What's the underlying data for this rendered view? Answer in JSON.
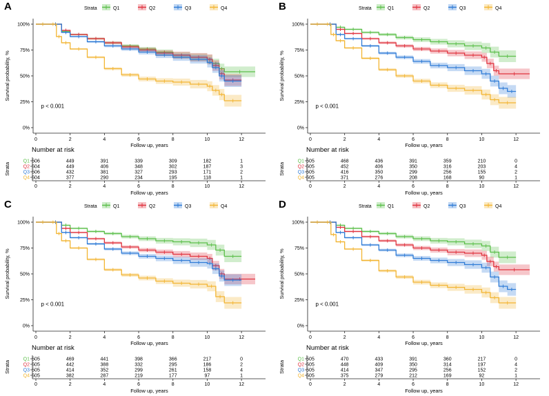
{
  "colors": {
    "Q1": "#5bbf4a",
    "Q2": "#e0333f",
    "Q3": "#2e7bd6",
    "Q4": "#f2b532"
  },
  "chart_data": [
    {
      "panel": "A",
      "type": "line",
      "subtype": "kaplan-meier",
      "legend_title": "Strata",
      "legend": [
        "Q1",
        "Q2",
        "Q3",
        "Q4"
      ],
      "legend_position": "top",
      "xlabel": "Follow up, years",
      "ylabel": "Survival probability, %",
      "xlim": [
        0,
        12.8
      ],
      "ylim": [
        0,
        1
      ],
      "x_ticks": [
        "0",
        "2",
        "4",
        "6",
        "8",
        "10",
        "12"
      ],
      "y_ticks": [
        "0%",
        "25%",
        "50%",
        "75%",
        "100%"
      ],
      "pvalue": "p < 0.001",
      "series": [
        {
          "name": "Q1",
          "x": [
            0,
            0.8,
            1.5,
            2,
            3,
            4,
            5,
            6,
            7,
            8,
            9,
            10,
            10.3,
            10.7,
            11,
            12.8
          ],
          "y": [
            1,
            1,
            0.93,
            0.9,
            0.86,
            0.82,
            0.79,
            0.76,
            0.73,
            0.7,
            0.68,
            0.66,
            0.62,
            0.57,
            0.54,
            0.54
          ]
        },
        {
          "name": "Q2",
          "x": [
            0,
            0.8,
            1.5,
            2,
            3,
            4,
            5,
            6,
            7,
            8,
            9,
            10,
            10.3,
            10.7,
            11,
            12
          ],
          "y": [
            1,
            1,
            0.94,
            0.9,
            0.86,
            0.82,
            0.78,
            0.75,
            0.72,
            0.7,
            0.68,
            0.66,
            0.6,
            0.52,
            0.46,
            0.46
          ]
        },
        {
          "name": "Q3",
          "x": [
            0,
            0.8,
            1.5,
            2,
            3,
            4,
            5,
            6,
            7,
            8,
            9,
            10,
            10.3,
            10.7,
            11,
            12
          ],
          "y": [
            1,
            1,
            0.92,
            0.88,
            0.83,
            0.79,
            0.76,
            0.73,
            0.7,
            0.68,
            0.66,
            0.63,
            0.58,
            0.5,
            0.45,
            0.45
          ]
        },
        {
          "name": "Q4",
          "x": [
            0,
            0.8,
            1.2,
            1.5,
            2,
            3,
            4,
            5,
            6,
            7,
            8,
            9,
            10,
            10.3,
            10.7,
            11,
            12
          ],
          "y": [
            1,
            1,
            0.88,
            0.82,
            0.76,
            0.68,
            0.57,
            0.51,
            0.47,
            0.45,
            0.44,
            0.42,
            0.4,
            0.36,
            0.32,
            0.26,
            0.26
          ]
        }
      ],
      "risk_table": {
        "title": "Number at risk",
        "ylabel": "Strata",
        "xlabel": "Follow up, years",
        "times": [
          "0",
          "2",
          "4",
          "6",
          "8",
          "10",
          "12"
        ],
        "rows": [
          {
            "name": "Q1",
            "values": [
              "506",
              "449",
              "391",
              "339",
              "309",
              "182",
              "1"
            ]
          },
          {
            "name": "Q2",
            "values": [
              "504",
              "449",
              "406",
              "348",
              "302",
              "187",
              "3"
            ]
          },
          {
            "name": "Q3",
            "values": [
              "506",
              "432",
              "381",
              "327",
              "293",
              "171",
              "2"
            ]
          },
          {
            "name": "Q4",
            "values": [
              "504",
              "377",
              "290",
              "234",
              "195",
              "118",
              "1"
            ]
          }
        ]
      }
    },
    {
      "panel": "B",
      "type": "line",
      "subtype": "kaplan-meier",
      "legend_title": "Strata",
      "legend": [
        "Q1",
        "Q2",
        "Q3",
        "Q4"
      ],
      "legend_position": "top",
      "xlabel": "Follow up, years",
      "ylabel": "Survival probability, %",
      "xlim": [
        0,
        12.8
      ],
      "ylim": [
        0,
        1
      ],
      "x_ticks": [
        "0",
        "2",
        "4",
        "6",
        "8",
        "10",
        "12"
      ],
      "y_ticks": [
        "0%",
        "25%",
        "50%",
        "75%",
        "100%"
      ],
      "pvalue": "p < 0.001",
      "series": [
        {
          "name": "Q1",
          "x": [
            0,
            0.8,
            1.5,
            2,
            3,
            4,
            5,
            6,
            7,
            8,
            9,
            10,
            10.5,
            11,
            12
          ],
          "y": [
            1,
            1,
            0.97,
            0.95,
            0.92,
            0.9,
            0.87,
            0.85,
            0.83,
            0.81,
            0.79,
            0.77,
            0.73,
            0.69,
            0.69
          ]
        },
        {
          "name": "Q2",
          "x": [
            0,
            0.8,
            1.5,
            2,
            3,
            4,
            5,
            6,
            7,
            8,
            9,
            10,
            10.3,
            10.7,
            11,
            12.8
          ],
          "y": [
            1,
            1,
            0.95,
            0.91,
            0.86,
            0.82,
            0.79,
            0.76,
            0.74,
            0.72,
            0.7,
            0.68,
            0.62,
            0.55,
            0.52,
            0.52
          ]
        },
        {
          "name": "Q3",
          "x": [
            0,
            0.8,
            1.5,
            2,
            3,
            4,
            5,
            6,
            7,
            8,
            9,
            10,
            10.5,
            11,
            11.5,
            12
          ],
          "y": [
            1,
            1,
            0.9,
            0.86,
            0.79,
            0.72,
            0.68,
            0.64,
            0.6,
            0.58,
            0.55,
            0.52,
            0.45,
            0.38,
            0.35,
            0.35
          ]
        },
        {
          "name": "Q4",
          "x": [
            0,
            0.8,
            1.2,
            1.5,
            2,
            3,
            4,
            5,
            6,
            7,
            8,
            9,
            10,
            10.5,
            11,
            12
          ],
          "y": [
            1,
            1,
            0.9,
            0.84,
            0.77,
            0.67,
            0.56,
            0.5,
            0.45,
            0.41,
            0.38,
            0.36,
            0.32,
            0.27,
            0.24,
            0.24
          ]
        }
      ],
      "risk_table": {
        "title": "Number at risk",
        "ylabel": "Strata",
        "xlabel": "Follow up, years",
        "times": [
          "0",
          "2",
          "4",
          "6",
          "8",
          "10",
          "12"
        ],
        "rows": [
          {
            "name": "Q1",
            "values": [
              "505",
              "468",
              "436",
              "391",
              "359",
              "210",
              "0"
            ]
          },
          {
            "name": "Q2",
            "values": [
              "505",
              "452",
              "406",
              "350",
              "316",
              "203",
              "4"
            ]
          },
          {
            "name": "Q3",
            "values": [
              "505",
              "416",
              "350",
              "299",
              "256",
              "155",
              "2"
            ]
          },
          {
            "name": "Q4",
            "values": [
              "505",
              "371",
              "276",
              "208",
              "168",
              "90",
              "1"
            ]
          }
        ]
      }
    },
    {
      "panel": "C",
      "type": "line",
      "subtype": "kaplan-meier",
      "legend_title": "Strata",
      "legend": [
        "Q1",
        "Q2",
        "Q3",
        "Q4"
      ],
      "legend_position": "top",
      "xlabel": "Follow up, years",
      "ylabel": "Survival probability, %",
      "xlim": [
        0,
        12.8
      ],
      "ylim": [
        0,
        1
      ],
      "x_ticks": [
        "0",
        "2",
        "4",
        "6",
        "8",
        "10",
        "12"
      ],
      "y_ticks": [
        "0%",
        "25%",
        "50%",
        "75%",
        "100%"
      ],
      "pvalue": "p < 0.001",
      "series": [
        {
          "name": "Q1",
          "x": [
            0,
            0.8,
            1.5,
            2,
            3,
            4,
            5,
            6,
            7,
            8,
            9,
            10,
            10.5,
            11,
            12
          ],
          "y": [
            1,
            1,
            0.97,
            0.94,
            0.91,
            0.89,
            0.86,
            0.84,
            0.82,
            0.81,
            0.8,
            0.78,
            0.73,
            0.67,
            0.67
          ]
        },
        {
          "name": "Q2",
          "x": [
            0,
            0.8,
            1.5,
            2,
            3,
            4,
            5,
            6,
            7,
            8,
            9,
            10,
            10.3,
            10.7,
            11,
            12.8
          ],
          "y": [
            1,
            1,
            0.94,
            0.9,
            0.84,
            0.8,
            0.76,
            0.73,
            0.71,
            0.69,
            0.67,
            0.65,
            0.58,
            0.5,
            0.45,
            0.45
          ]
        },
        {
          "name": "Q3",
          "x": [
            0,
            0.8,
            1.5,
            2,
            3,
            4,
            5,
            6,
            7,
            8,
            9,
            10,
            10.3,
            10.7,
            11,
            12
          ],
          "y": [
            1,
            1,
            0.9,
            0.85,
            0.79,
            0.74,
            0.7,
            0.67,
            0.65,
            0.63,
            0.61,
            0.6,
            0.55,
            0.48,
            0.44,
            0.44
          ]
        },
        {
          "name": "Q4",
          "x": [
            0,
            0.8,
            1.2,
            1.5,
            2,
            3,
            4,
            5,
            6,
            7,
            8,
            9,
            10,
            10.5,
            11,
            12
          ],
          "y": [
            1,
            1,
            0.89,
            0.82,
            0.75,
            0.64,
            0.54,
            0.49,
            0.46,
            0.43,
            0.41,
            0.4,
            0.38,
            0.28,
            0.22,
            0.22
          ]
        }
      ],
      "risk_table": {
        "title": "Number at risk",
        "ylabel": "Strata",
        "xlabel": "Follow up, years",
        "times": [
          "0",
          "2",
          "4",
          "6",
          "8",
          "10",
          "12"
        ],
        "rows": [
          {
            "name": "Q1",
            "values": [
              "505",
              "469",
              "441",
              "398",
              "366",
              "217",
              "0"
            ]
          },
          {
            "name": "Q2",
            "values": [
              "505",
              "442",
              "388",
              "332",
              "295",
              "186",
              "2"
            ]
          },
          {
            "name": "Q3",
            "values": [
              "505",
              "414",
              "352",
              "299",
              "261",
              "158",
              "4"
            ]
          },
          {
            "name": "Q4",
            "values": [
              "505",
              "382",
              "287",
              "219",
              "177",
              "97",
              "1"
            ]
          }
        ]
      }
    },
    {
      "panel": "D",
      "type": "line",
      "subtype": "kaplan-meier",
      "legend_title": "Strata",
      "legend": [
        "Q1",
        "Q2",
        "Q3",
        "Q4"
      ],
      "legend_position": "top",
      "xlabel": "Follow up, years",
      "ylabel": "Survival probability, %",
      "xlim": [
        0,
        12.8
      ],
      "ylim": [
        0,
        1
      ],
      "x_ticks": [
        "0",
        "2",
        "4",
        "6",
        "8",
        "10",
        "12"
      ],
      "y_ticks": [
        "0%",
        "25%",
        "50%",
        "75%",
        "100%"
      ],
      "pvalue": "p < 0.001",
      "series": [
        {
          "name": "Q1",
          "x": [
            0,
            0.8,
            1.5,
            2,
            3,
            4,
            5,
            6,
            7,
            8,
            9,
            10,
            10.5,
            11,
            12
          ],
          "y": [
            1,
            1,
            0.97,
            0.94,
            0.91,
            0.89,
            0.86,
            0.84,
            0.82,
            0.81,
            0.79,
            0.77,
            0.71,
            0.66,
            0.66
          ]
        },
        {
          "name": "Q2",
          "x": [
            0,
            0.8,
            1.5,
            2,
            3,
            4,
            5,
            6,
            7,
            8,
            9,
            10,
            10.3,
            10.7,
            11,
            12.8
          ],
          "y": [
            1,
            1,
            0.95,
            0.91,
            0.86,
            0.82,
            0.78,
            0.75,
            0.73,
            0.71,
            0.7,
            0.68,
            0.62,
            0.57,
            0.54,
            0.54
          ]
        },
        {
          "name": "Q3",
          "x": [
            0,
            0.8,
            1.5,
            2,
            3,
            4,
            5,
            6,
            7,
            8,
            9,
            10,
            10.5,
            11,
            11.5,
            12
          ],
          "y": [
            1,
            1,
            0.9,
            0.85,
            0.78,
            0.73,
            0.68,
            0.65,
            0.63,
            0.61,
            0.59,
            0.56,
            0.47,
            0.38,
            0.35,
            0.35
          ]
        },
        {
          "name": "Q4",
          "x": [
            0,
            0.8,
            1.2,
            1.5,
            2,
            3,
            4,
            5,
            6,
            7,
            8,
            9,
            10,
            10.5,
            11,
            12
          ],
          "y": [
            1,
            1,
            0.88,
            0.81,
            0.74,
            0.63,
            0.53,
            0.47,
            0.42,
            0.39,
            0.37,
            0.35,
            0.32,
            0.27,
            0.22,
            0.22
          ]
        }
      ],
      "risk_table": {
        "title": "Number at risk",
        "ylabel": "Strata",
        "xlabel": "Follow up, years",
        "times": [
          "0",
          "2",
          "4",
          "6",
          "8",
          "10",
          "12"
        ],
        "rows": [
          {
            "name": "Q1",
            "values": [
              "505",
              "470",
              "433",
              "391",
              "360",
              "217",
              "0"
            ]
          },
          {
            "name": "Q2",
            "values": [
              "505",
              "448",
              "409",
              "350",
              "314",
              "197",
              "4"
            ]
          },
          {
            "name": "Q3",
            "values": [
              "505",
              "414",
              "347",
              "295",
              "256",
              "152",
              "2"
            ]
          },
          {
            "name": "Q4",
            "values": [
              "505",
              "375",
              "279",
              "212",
              "169",
              "92",
              "1"
            ]
          }
        ]
      }
    }
  ]
}
